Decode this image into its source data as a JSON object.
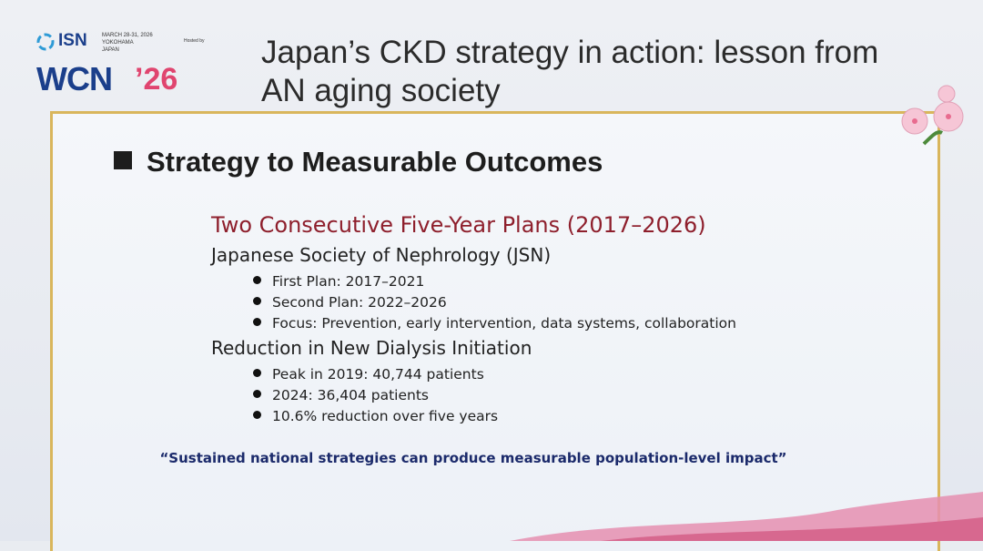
{
  "header": {
    "logo": {
      "org": "ISN",
      "event_dates": "MARCH 28-31, 2026",
      "city": "YOKOHAMA",
      "country": "JAPAN",
      "hosted_by": "Hosted by",
      "brand": "WCN",
      "year": "’26"
    },
    "title_line_1": "Japan’s CKD strategy in action: lesson from",
    "title_line_2": "AN aging society"
  },
  "section": {
    "heading": "Strategy to Measurable Outcomes",
    "subheading": "Two Consecutive Five-Year Plans (2017–2026)",
    "groups": [
      {
        "title": "Japanese Society of Nephrology (JSN)",
        "bullets": [
          "First Plan: 2017–2021",
          "Second Plan: 2022–2026",
          "Focus: Prevention, early intervention, data systems, collaboration"
        ]
      },
      {
        "title": "Reduction in New Dialysis Initiation",
        "bullets": [
          "Peak in 2019: 40,744 patients",
          "2024: 36,404 patients",
          "10.6% reduction over five years"
        ]
      }
    ],
    "quote": "“Sustained national strategies can produce measurable population-level impact”"
  }
}
